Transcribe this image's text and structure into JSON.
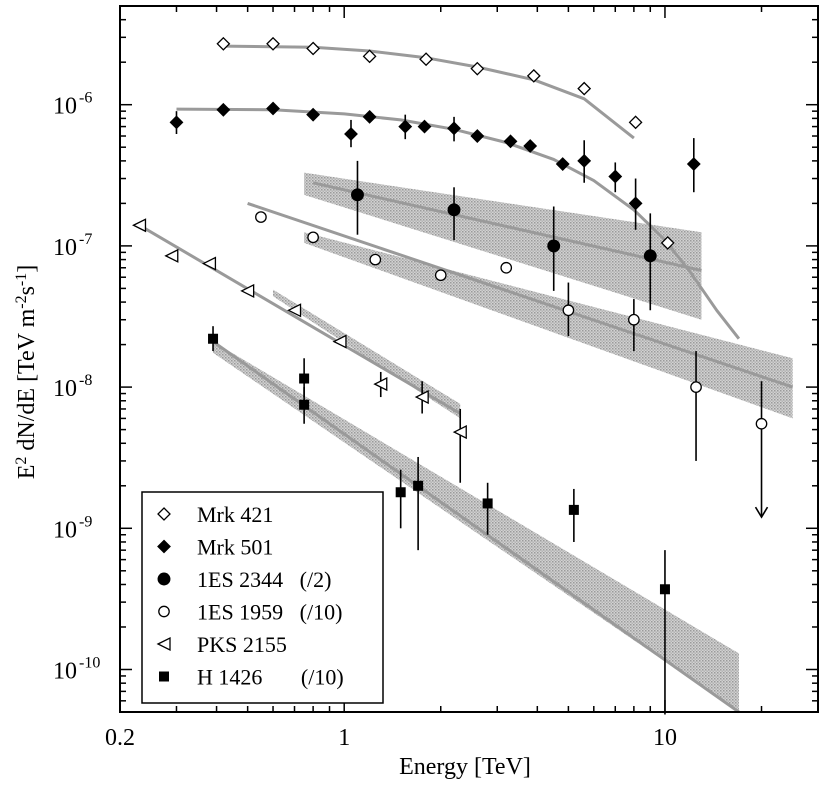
{
  "chart_data": {
    "type": "scatter",
    "title": "",
    "xlabel": "Energy [TeV]",
    "ylabel_parts": {
      "base": "E",
      "sup1": "2",
      "mid": " dN/dE  [TeV m",
      "sup2": "-2",
      "s": "s",
      "sup3": "-1",
      "end": "]"
    },
    "xscale": "log",
    "yscale": "log",
    "xlim": [
      0.2,
      30
    ],
    "ylim": [
      5e-11,
      5e-06
    ],
    "x_ticks": [
      {
        "value": 0.2,
        "label": "0.2"
      },
      {
        "value": 1,
        "label": "1"
      },
      {
        "value": 10,
        "label": "10"
      }
    ],
    "y_ticks": [
      {
        "value": 1e-10,
        "base": "10",
        "exp": "-10"
      },
      {
        "value": 1e-09,
        "base": "10",
        "exp": "-9"
      },
      {
        "value": 1e-08,
        "base": "10",
        "exp": "-8"
      },
      {
        "value": 1e-07,
        "base": "10",
        "exp": "-7"
      },
      {
        "value": 1e-06,
        "base": "10",
        "exp": "-6"
      }
    ],
    "legend": {
      "position": "bottom-left",
      "entries": [
        {
          "marker": "diamond-open",
          "label": "Mrk 421"
        },
        {
          "marker": "diamond-filled",
          "label": "Mrk 501"
        },
        {
          "marker": "circle-filled",
          "label": "1ES 2344   (/2)"
        },
        {
          "marker": "circle-open",
          "label": "1ES 1959   (/10)"
        },
        {
          "marker": "triangle-left-open",
          "label": "PKS 2155"
        },
        {
          "marker": "square-filled",
          "label": "H 1426       (/10)"
        }
      ]
    },
    "series": [
      {
        "name": "Mrk 421",
        "marker": "diamond-open",
        "points": [
          {
            "x": 0.42,
            "y": 2.7e-06
          },
          {
            "x": 0.6,
            "y": 2.7e-06
          },
          {
            "x": 0.8,
            "y": 2.5e-06
          },
          {
            "x": 1.2,
            "y": 2.2e-06
          },
          {
            "x": 1.8,
            "y": 2.1e-06
          },
          {
            "x": 2.6,
            "y": 1.8e-06
          },
          {
            "x": 3.9,
            "y": 1.6e-06
          },
          {
            "x": 5.6,
            "y": 1.3e-06
          },
          {
            "x": 8.1,
            "y": 7.5e-07
          },
          {
            "x": 10.2,
            "y": 1.05e-07
          }
        ],
        "fit": [
          {
            "x": 0.42,
            "y": 2.6e-06
          },
          {
            "x": 0.8,
            "y": 2.55e-06
          },
          {
            "x": 1.2,
            "y": 2.4e-06
          },
          {
            "x": 1.8,
            "y": 2.15e-06
          },
          {
            "x": 2.6,
            "y": 1.85e-06
          },
          {
            "x": 3.9,
            "y": 1.5e-06
          },
          {
            "x": 5.6,
            "y": 1.1e-06
          },
          {
            "x": 8.0,
            "y": 5.8e-07
          }
        ]
      },
      {
        "name": "Mrk 501",
        "marker": "diamond-filled",
        "points": [
          {
            "x": 0.3,
            "y": 7.5e-07,
            "ylo": 6.2e-07,
            "yhi": 9e-07
          },
          {
            "x": 0.42,
            "y": 9.2e-07
          },
          {
            "x": 0.6,
            "y": 9.4e-07
          },
          {
            "x": 0.8,
            "y": 8.5e-07
          },
          {
            "x": 1.05,
            "y": 6.2e-07,
            "ylo": 5e-07,
            "yhi": 7.8e-07
          },
          {
            "x": 1.2,
            "y": 8.2e-07
          },
          {
            "x": 1.55,
            "y": 7e-07,
            "ylo": 5.7e-07,
            "yhi": 8.5e-07
          },
          {
            "x": 1.78,
            "y": 7e-07
          },
          {
            "x": 2.2,
            "y": 6.8e-07,
            "ylo": 5.5e-07,
            "yhi": 8.2e-07
          },
          {
            "x": 2.6,
            "y": 6e-07
          },
          {
            "x": 3.3,
            "y": 5.5e-07
          },
          {
            "x": 3.8,
            "y": 5.1e-07
          },
          {
            "x": 4.8,
            "y": 3.8e-07
          },
          {
            "x": 5.6,
            "y": 4e-07,
            "ylo": 2.8e-07,
            "yhi": 5.6e-07
          },
          {
            "x": 7.0,
            "y": 3.1e-07,
            "ylo": 2.4e-07,
            "yhi": 3.9e-07
          },
          {
            "x": 8.1,
            "y": 2e-07,
            "ylo": 1.3e-07,
            "yhi": 3e-07
          },
          {
            "x": 12.3,
            "y": 3.8e-07,
            "ylo": 2.4e-07,
            "yhi": 5.8e-07
          }
        ],
        "fit": [
          {
            "x": 0.3,
            "y": 9.3e-07
          },
          {
            "x": 0.6,
            "y": 9.2e-07
          },
          {
            "x": 1.0,
            "y": 8.6e-07
          },
          {
            "x": 1.5,
            "y": 7.8e-07
          },
          {
            "x": 2.2,
            "y": 6.7e-07
          },
          {
            "x": 3.2,
            "y": 5.4e-07
          },
          {
            "x": 4.5,
            "y": 4.1e-07
          },
          {
            "x": 6.0,
            "y": 2.9e-07
          },
          {
            "x": 8.0,
            "y": 1.8e-07
          },
          {
            "x": 10.0,
            "y": 1.1e-07
          },
          {
            "x": 12.0,
            "y": 6.5e-08
          },
          {
            "x": 14.5,
            "y": 3.5e-08
          },
          {
            "x": 17.0,
            "y": 2.2e-08
          }
        ]
      },
      {
        "name": "1ES 2344",
        "marker": "circle-filled",
        "points": [
          {
            "x": 1.1,
            "y": 2.3e-07,
            "ylo": 1.2e-07,
            "yhi": 4e-07
          },
          {
            "x": 2.2,
            "y": 1.8e-07,
            "ylo": 1.1e-07,
            "yhi": 2.6e-07
          },
          {
            "x": 4.5,
            "y": 1e-07,
            "ylo": 4.8e-08,
            "yhi": 1.9e-07
          },
          {
            "x": 9.0,
            "y": 8.5e-08,
            "ylo": 3.5e-08,
            "yhi": 1.7e-07
          }
        ],
        "fit": [
          {
            "x": 0.8,
            "y": 2.8e-07
          },
          {
            "x": 13.0,
            "y": 6.7e-08
          }
        ],
        "band": {
          "x_start": 0.75,
          "x_end": 13.0,
          "lower_start": 2.3e-07,
          "upper_start": 3.3e-07,
          "lower_end": 3e-08,
          "upper_end": 1.25e-07
        }
      },
      {
        "name": "1ES 1959",
        "marker": "circle-open",
        "points": [
          {
            "x": 0.55,
            "y": 1.6e-07
          },
          {
            "x": 0.8,
            "y": 1.15e-07
          },
          {
            "x": 1.25,
            "y": 8e-08
          },
          {
            "x": 2.0,
            "y": 6.2e-08
          },
          {
            "x": 3.2,
            "y": 7e-08
          },
          {
            "x": 5.0,
            "y": 3.5e-08,
            "ylo": 2.3e-08,
            "yhi": 5.5e-08
          },
          {
            "x": 8.0,
            "y": 3e-08,
            "ylo": 1.8e-08,
            "yhi": 4.2e-08
          },
          {
            "x": 12.5,
            "y": 1e-08,
            "ylo": 3e-09,
            "yhi": 1.8e-08
          },
          {
            "x": 20.0,
            "y": 5.5e-09,
            "ylo": 1.2e-09,
            "yhi": 1.1e-08,
            "upper_limit": true
          }
        ],
        "fit": [
          {
            "x": 0.5,
            "y": 2e-07
          },
          {
            "x": 25.0,
            "y": 1e-08
          }
        ],
        "band": {
          "x_start": 0.75,
          "x_end": 25.0,
          "lower_start": 1.05e-07,
          "upper_start": 1.25e-07,
          "lower_end": 6e-09,
          "upper_end": 1.6e-08
        }
      },
      {
        "name": "PKS 2155",
        "marker": "triangle-left-open",
        "points": [
          {
            "x": 0.23,
            "y": 1.4e-07
          },
          {
            "x": 0.29,
            "y": 8.5e-08
          },
          {
            "x": 0.38,
            "y": 7.5e-08
          },
          {
            "x": 0.5,
            "y": 4.8e-08
          },
          {
            "x": 0.7,
            "y": 3.5e-08
          },
          {
            "x": 0.97,
            "y": 2.1e-08
          },
          {
            "x": 1.3,
            "y": 1.05e-08,
            "ylo": 8.5e-09,
            "yhi": 1.28e-08
          },
          {
            "x": 1.75,
            "y": 8.5e-09,
            "ylo": 6.5e-09,
            "yhi": 1.1e-08
          },
          {
            "x": 2.3,
            "y": 4.8e-09,
            "ylo": 2.1e-09,
            "yhi": 7e-09
          }
        ],
        "fit": [
          {
            "x": 0.23,
            "y": 1.4e-07
          },
          {
            "x": 2.3,
            "y": 6.5e-09
          }
        ],
        "band": {
          "x_start": 0.6,
          "x_end": 2.3,
          "lower_start": 4.4e-08,
          "upper_start": 4.9e-08,
          "lower_end": 6e-09,
          "upper_end": 7.6e-09
        }
      },
      {
        "name": "H 1426",
        "marker": "square-filled",
        "points": [
          {
            "x": 0.39,
            "y": 2.2e-08,
            "ylo": 1.8e-08,
            "yhi": 2.7e-08
          },
          {
            "x": 0.75,
            "y": 1.15e-08,
            "ylo": 8.5e-09,
            "yhi": 1.6e-08
          },
          {
            "x": 0.75,
            "y": 7.5e-09,
            "ylo": 5.5e-09,
            "yhi": 1e-08
          },
          {
            "x": 1.5,
            "y": 1.8e-09,
            "ylo": 1e-09,
            "yhi": 2.6e-09
          },
          {
            "x": 1.7,
            "y": 2e-09,
            "ylo": 7e-10,
            "yhi": 3.2e-09
          },
          {
            "x": 2.8,
            "y": 1.5e-09,
            "ylo": 9e-10,
            "yhi": 2.1e-09
          },
          {
            "x": 5.2,
            "y": 1.35e-09,
            "ylo": 8e-10,
            "yhi": 1.9e-09
          },
          {
            "x": 10.0,
            "y": 3.7e-10,
            "ylo": 4.8e-11,
            "yhi": 7e-10
          }
        ],
        "fit": [
          {
            "x": 0.39,
            "y": 2.1e-08
          },
          {
            "x": 17.0,
            "y": 5e-11
          }
        ],
        "band": {
          "x_start": 0.39,
          "x_end": 17.0,
          "lower_start": 1.75e-08,
          "upper_start": 2.1e-08,
          "lower_end": 5e-11,
          "upper_end": 1.3e-10
        }
      }
    ]
  }
}
